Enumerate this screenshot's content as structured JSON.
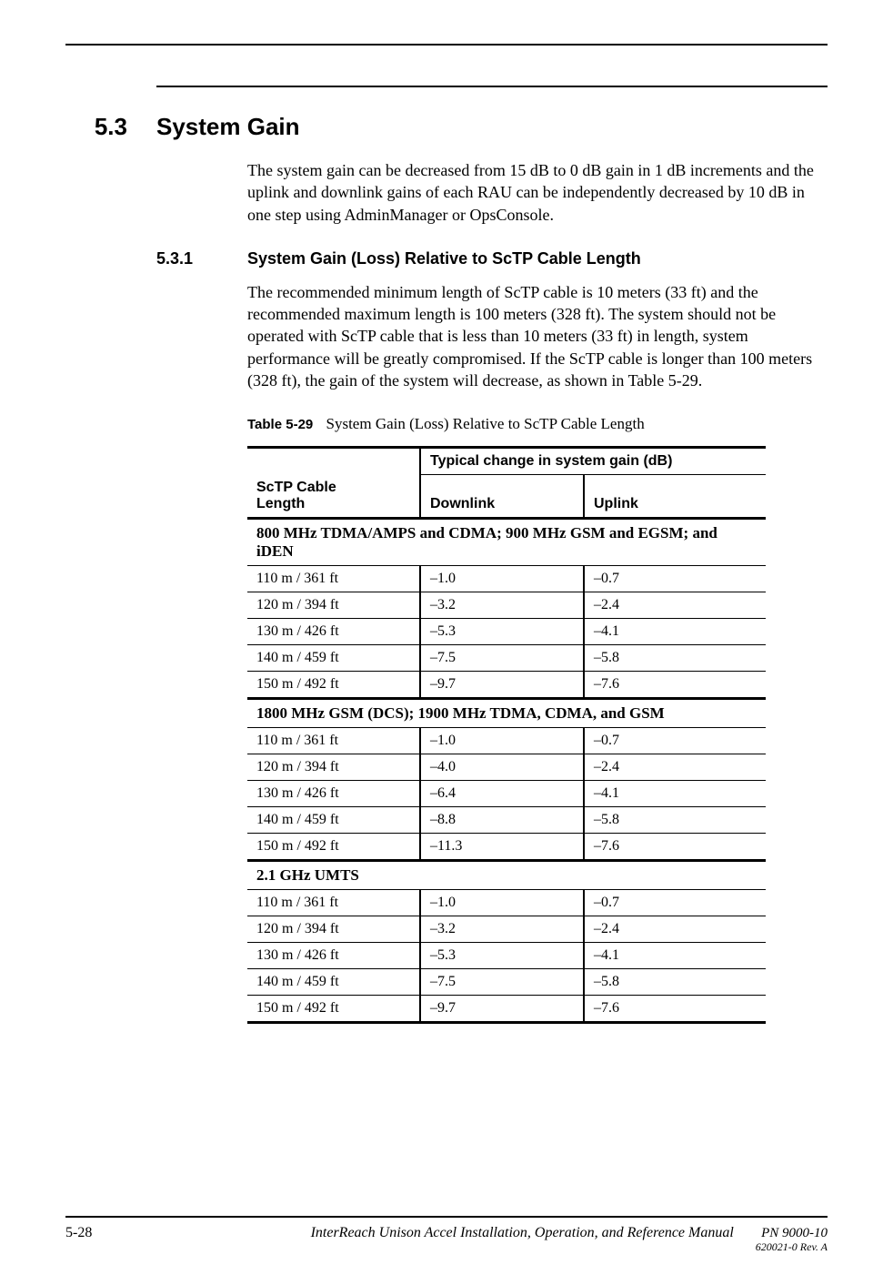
{
  "section": {
    "num": "5.3",
    "title": "System Gain"
  },
  "para1": "The system gain can be decreased from 15 dB to 0 dB gain in 1 dB increments and the uplink and downlink gains of each RAU can be independently decreased by 10 dB in one step using AdminManager or OpsConsole.",
  "subsection": {
    "num": "5.3.1",
    "title": "System Gain (Loss) Relative to ScTP Cable Length"
  },
  "para2": "The recommended minimum length of ScTP cable is 10 meters (33 ft) and the recommended maximum length is 100 meters (328 ft). The system should not be operated with ScTP cable that is less than 10 meters (33 ft) in length, system performance will be greatly compromised. If the ScTP cable is longer than 100 meters (328 ft), the gain of the system will decrease, as shown in Table 5-29.",
  "tableCaption": {
    "label": "Table 5-29",
    "text": "System Gain (Loss) Relative to ScTP Cable Length"
  },
  "headers": {
    "col1a": "ScTP Cable",
    "col1b": "Length",
    "span": "Typical change in system gain (dB)",
    "c2": "Downlink",
    "c3": "Uplink"
  },
  "groups": [
    {
      "title": "800 MHz TDMA/AMPS and CDMA; 900 MHz GSM and EGSM; and iDEN",
      "rows": [
        {
          "len": "110 m / 361 ft",
          "dl": "–1.0",
          "ul": "–0.7"
        },
        {
          "len": "120 m / 394 ft",
          "dl": "–3.2",
          "ul": "–2.4"
        },
        {
          "len": "130 m / 426 ft",
          "dl": "–5.3",
          "ul": "–4.1"
        },
        {
          "len": "140 m / 459 ft",
          "dl": "–7.5",
          "ul": "–5.8"
        },
        {
          "len": "150 m / 492 ft",
          "dl": "–9.7",
          "ul": "–7.6"
        }
      ]
    },
    {
      "title": "1800 MHz GSM (DCS); 1900 MHz TDMA, CDMA, and GSM",
      "rows": [
        {
          "len": "110 m / 361 ft",
          "dl": "–1.0",
          "ul": "–0.7"
        },
        {
          "len": "120 m / 394 ft",
          "dl": "–4.0",
          "ul": "–2.4"
        },
        {
          "len": "130 m / 426 ft",
          "dl": "–6.4",
          "ul": "–4.1"
        },
        {
          "len": "140 m / 459 ft",
          "dl": "–8.8",
          "ul": "–5.8"
        },
        {
          "len": "150 m / 492 ft",
          "dl": "–11.3",
          "ul": "–7.6"
        }
      ]
    },
    {
      "title": "2.1 GHz UMTS",
      "rows": [
        {
          "len": "110 m / 361 ft",
          "dl": "–1.0",
          "ul": "–0.7"
        },
        {
          "len": "120 m / 394 ft",
          "dl": "–3.2",
          "ul": "–2.4"
        },
        {
          "len": "130 m / 426 ft",
          "dl": "–5.3",
          "ul": "–4.1"
        },
        {
          "len": "140 m / 459 ft",
          "dl": "–7.5",
          "ul": "–5.8"
        },
        {
          "len": "150 m / 492 ft",
          "dl": "–9.7",
          "ul": "–7.6"
        }
      ]
    }
  ],
  "footer": {
    "page": "5-28",
    "title": "InterReach Unison Accel Installation, Operation, and Reference Manual",
    "pn": "PN 9000-10",
    "rev": "620021-0 Rev. A"
  }
}
